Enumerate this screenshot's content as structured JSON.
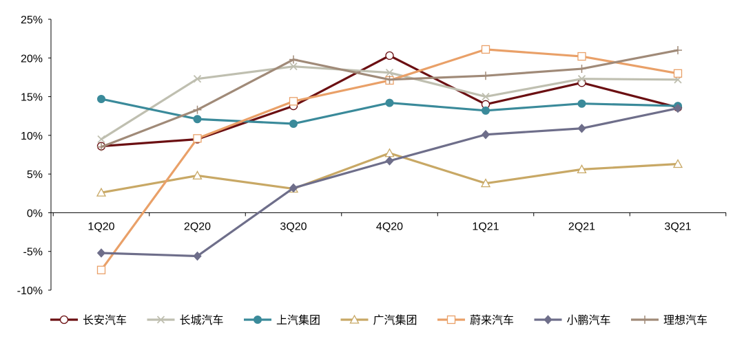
{
  "chart_data": {
    "type": "line",
    "categories": [
      "1Q20",
      "2Q20",
      "3Q20",
      "4Q20",
      "1Q21",
      "2Q21",
      "3Q21"
    ],
    "ylim": [
      -10,
      25
    ],
    "yticks": [
      "25%",
      "20%",
      "15%",
      "10%",
      "5%",
      "0%",
      "-5%",
      "-10%"
    ],
    "legend_position": "bottom",
    "grid": false,
    "series": [
      {
        "name": "长安汽车",
        "color": "#6B0F12",
        "marker": "circle-open",
        "values": [
          8.6,
          9.5,
          13.8,
          20.3,
          14.0,
          16.8,
          13.6
        ]
      },
      {
        "name": "长城汽车",
        "color": "#BFBFB0",
        "marker": "x",
        "values": [
          9.5,
          17.3,
          18.9,
          18.1,
          15.0,
          17.3,
          17.2
        ]
      },
      {
        "name": "上汽集团",
        "color": "#3A8A9A",
        "marker": "circle-filled",
        "values": [
          14.7,
          12.1,
          11.5,
          14.2,
          13.2,
          14.1,
          13.8
        ]
      },
      {
        "name": "广汽集团",
        "color": "#C8A865",
        "marker": "triangle-open",
        "values": [
          2.6,
          4.8,
          3.1,
          7.7,
          3.8,
          5.6,
          6.3
        ]
      },
      {
        "name": "蔚来汽车",
        "color": "#E9A068",
        "marker": "square-open",
        "values": [
          -7.4,
          9.6,
          14.4,
          17.1,
          21.1,
          20.2,
          18.0
        ]
      },
      {
        "name": "小鹏汽车",
        "color": "#6E6E8A",
        "marker": "diamond",
        "values": [
          -5.2,
          -5.6,
          3.2,
          6.7,
          10.1,
          10.9,
          13.5
        ]
      },
      {
        "name": "理想汽车",
        "color": "#A08A78",
        "marker": "plus",
        "values": [
          8.5,
          13.3,
          19.8,
          17.2,
          17.7,
          18.6,
          21.0
        ]
      }
    ]
  }
}
